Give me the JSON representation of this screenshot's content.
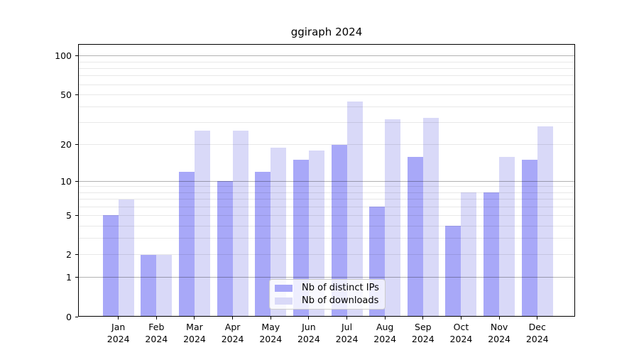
{
  "figure": {
    "title": "ggiraph 2024"
  },
  "chart_data": {
    "type": "bar",
    "title": "ggiraph 2024",
    "x_categories": [
      {
        "month": "Jan",
        "year": "2024"
      },
      {
        "month": "Feb",
        "year": "2024"
      },
      {
        "month": "Mar",
        "year": "2024"
      },
      {
        "month": "Apr",
        "year": "2024"
      },
      {
        "month": "May",
        "year": "2024"
      },
      {
        "month": "Jun",
        "year": "2024"
      },
      {
        "month": "Jul",
        "year": "2024"
      },
      {
        "month": "Aug",
        "year": "2024"
      },
      {
        "month": "Sep",
        "year": "2024"
      },
      {
        "month": "Oct",
        "year": "2024"
      },
      {
        "month": "Nov",
        "year": "2024"
      },
      {
        "month": "Dec",
        "year": "2024"
      }
    ],
    "series": [
      {
        "name": "Nb of distinct IPs",
        "color": "#a8a8f8",
        "values": [
          5,
          2,
          12,
          10,
          12,
          15,
          20,
          6,
          16,
          4,
          8,
          15
        ]
      },
      {
        "name": "Nb of downloads",
        "color": "#d9d9f8",
        "values": [
          7,
          2,
          26,
          26,
          19,
          18,
          44,
          32,
          33,
          8,
          16,
          28
        ]
      }
    ],
    "y_scale": "log1p",
    "ylim": [
      0,
      124
    ],
    "y_ticks": [
      0,
      1,
      2,
      5,
      10,
      20,
      50,
      100
    ],
    "y_major_gridlines": [
      1,
      10,
      100
    ],
    "y_minor_gridlines": [
      2,
      3,
      4,
      5,
      6,
      7,
      8,
      9,
      20,
      30,
      40,
      50,
      60,
      70,
      80,
      90
    ],
    "grid": true,
    "legend": {
      "position": "lower center",
      "entries": [
        "Nb of distinct IPs",
        "Nb of downloads"
      ]
    }
  }
}
